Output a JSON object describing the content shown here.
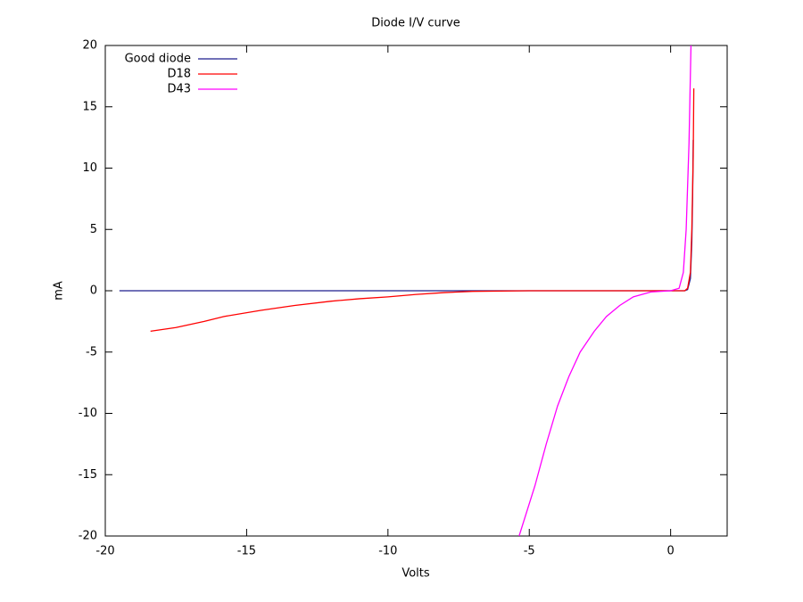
{
  "chart_data": {
    "type": "line",
    "title": "Diode I/V curve",
    "x_label": "Volts",
    "y_label": "mA",
    "xlim": [
      -20,
      2
    ],
    "ylim": [
      -20,
      20
    ],
    "xticks": [
      -20,
      -15,
      -10,
      -5,
      0
    ],
    "yticks": [
      -20,
      -15,
      -10,
      -5,
      0,
      5,
      10,
      15,
      20
    ],
    "legend": "top left",
    "series": [
      {
        "name": "Good diode",
        "color": "#1c1c8e",
        "x": [
          -19.5,
          -15,
          -10,
          -5,
          0,
          0.5,
          0.6,
          0.7,
          0.75,
          0.78,
          0.8
        ],
        "values": [
          0,
          0,
          0,
          0,
          0,
          0,
          0.1,
          1,
          4,
          8,
          12.3
        ]
      },
      {
        "name": "D18",
        "color": "#ff0000",
        "x": [
          -18.4,
          -17.5,
          -16.5,
          -15.8,
          -14.5,
          -13.3,
          -12,
          -11,
          -10,
          -9,
          -8,
          -7,
          -5,
          -2,
          0,
          0.5,
          0.6,
          0.7,
          0.75,
          0.8,
          0.82
        ],
        "values": [
          -3.3,
          -3.0,
          -2.5,
          -2.1,
          -1.6,
          -1.2,
          -0.85,
          -0.65,
          -0.5,
          -0.3,
          -0.15,
          -0.05,
          0,
          0,
          0,
          0,
          0.2,
          1.5,
          5,
          11,
          16.5
        ]
      },
      {
        "name": "D43",
        "color": "#ff00ff",
        "x": [
          -5.36,
          -4.8,
          -4.4,
          -4.0,
          -3.6,
          -3.2,
          -2.7,
          -2.27,
          -1.8,
          -1.32,
          -0.7,
          0,
          0.3,
          0.45,
          0.55,
          0.65,
          0.72
        ],
        "values": [
          -20,
          -15.9,
          -12.5,
          -9.4,
          -7,
          -5.0,
          -3.3,
          -2.1,
          -1.2,
          -0.5,
          -0.1,
          0,
          0.2,
          1.5,
          5,
          12,
          20
        ]
      }
    ]
  }
}
